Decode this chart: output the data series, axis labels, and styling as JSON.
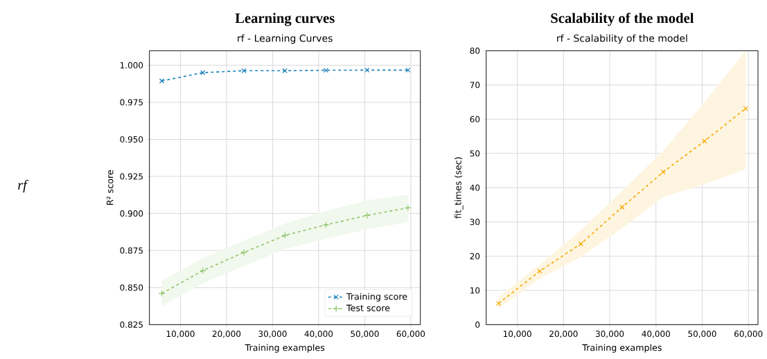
{
  "chart_data": [
    {
      "type": "line",
      "title": "Learning curves",
      "subtitle": "rf - Learning Curves",
      "xlabel": "Training examples",
      "ylabel": "R² score",
      "annotations": [
        "rf"
      ],
      "x": [
        5940,
        14850,
        23760,
        32670,
        41580,
        50490,
        59400
      ],
      "series": [
        {
          "name": "Training score",
          "color": "#1a80bb",
          "marker": "cross",
          "values": [
            0.9894,
            0.995,
            0.9963,
            0.9963,
            0.9966,
            0.9967,
            0.9967
          ]
        },
        {
          "name": "Test score",
          "color": "#8cc56a",
          "marker": "plus",
          "values": [
            0.846,
            0.8614,
            0.8737,
            0.8852,
            0.8923,
            0.8987,
            0.9038
          ],
          "lower": [
            0.8374,
            0.853,
            0.8645,
            0.876,
            0.883,
            0.8893,
            0.8941
          ],
          "upper": [
            0.8545,
            0.87,
            0.8816,
            0.8932,
            0.9018,
            0.9088,
            0.9127
          ]
        }
      ],
      "xlim": [
        3267,
        62073
      ],
      "ylim": [
        0.825,
        1.0098
      ],
      "xticks": [
        {
          "value": 10000,
          "label": "10,000"
        },
        {
          "value": 20000,
          "label": "20,000"
        },
        {
          "value": 30000,
          "label": "30,000"
        },
        {
          "value": 40000,
          "label": "40,000"
        },
        {
          "value": 50000,
          "label": "50,000"
        },
        {
          "value": 60000,
          "label": "60,000"
        }
      ],
      "yticks": [
        {
          "value": 0.825,
          "label": "0.825"
        },
        {
          "value": 0.85,
          "label": "0.850"
        },
        {
          "value": 0.875,
          "label": "0.875"
        },
        {
          "value": 0.9,
          "label": "0.900"
        },
        {
          "value": 0.925,
          "label": "0.925"
        },
        {
          "value": 0.95,
          "label": "0.950"
        },
        {
          "value": 0.975,
          "label": "0.975"
        },
        {
          "value": 1.0,
          "label": "1.000"
        }
      ],
      "grid": true,
      "legend": "bottom right",
      "line_style": "dashed"
    },
    {
      "type": "line",
      "title": "Scalability of the model",
      "subtitle": "rf - Scalability of the model",
      "xlabel": "Training examples",
      "ylabel": "fit_times (sec)",
      "x": [
        5940,
        14850,
        23760,
        32670,
        41580,
        50490,
        59400
      ],
      "series": [
        {
          "color": "#f5a800",
          "marker": "cross",
          "values": [
            6.2,
            15.6,
            23.6,
            34.3,
            44.6,
            53.6,
            63.1
          ],
          "lower": [
            4.7,
            13.4,
            19.8,
            28.2,
            37.3,
            41.0,
            45.4
          ],
          "upper": [
            8.1,
            17.5,
            27.6,
            39.0,
            50.8,
            64.9,
            80.0
          ]
        }
      ],
      "xlim": [
        3267,
        62073
      ],
      "ylim": [
        0,
        80
      ],
      "xticks": [
        {
          "value": 10000,
          "label": "10,000"
        },
        {
          "value": 20000,
          "label": "20,000"
        },
        {
          "value": 30000,
          "label": "30,000"
        },
        {
          "value": 40000,
          "label": "40,000"
        },
        {
          "value": 50000,
          "label": "50,000"
        },
        {
          "value": 60000,
          "label": "60,000"
        }
      ],
      "yticks": [
        0,
        10,
        20,
        30,
        40,
        50,
        60,
        70,
        80
      ],
      "grid": true,
      "line_style": "dashed"
    }
  ]
}
